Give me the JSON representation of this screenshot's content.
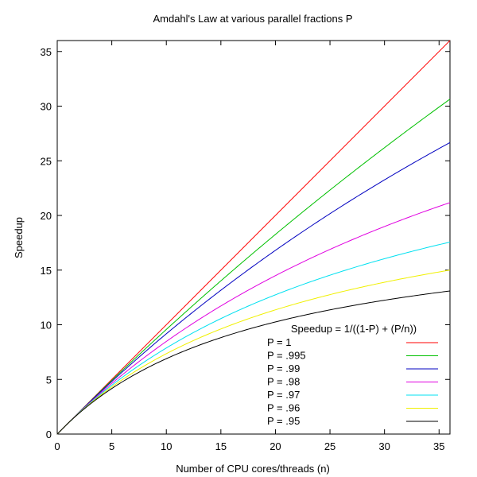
{
  "chart_data": {
    "type": "line",
    "title": "Amdahl's Law at various parallel fractions P",
    "xlabel": "Number of CPU cores/threads (n)",
    "ylabel": "Speedup",
    "xlim": [
      0,
      36
    ],
    "ylim": [
      0,
      36
    ],
    "xticks": [
      0,
      5,
      10,
      15,
      20,
      25,
      30,
      35
    ],
    "yticks": [
      0,
      5,
      10,
      15,
      20,
      25,
      30,
      35
    ],
    "grid": false,
    "legend": {
      "title": "Speedup = 1/((1-P) + (P/n))",
      "placement": "bottom-right"
    },
    "formula": "1/((1-P) + (P/n))",
    "series": [
      {
        "name": "P = 1",
        "P": 1.0,
        "color": "#ff0000",
        "x_range": [
          0,
          36
        ],
        "end_value": 36.0
      },
      {
        "name": "P = .995",
        "P": 0.995,
        "color": "#00c000",
        "x_range": [
          0,
          36
        ],
        "end_value": 30.6
      },
      {
        "name": "P = .99",
        "P": 0.99,
        "color": "#0000c0",
        "x_range": [
          0,
          36
        ],
        "end_value": 26.7
      },
      {
        "name": "P = .98",
        "P": 0.98,
        "color": "#e000e0",
        "x_range": [
          0,
          36
        ],
        "end_value": 21.2
      },
      {
        "name": "P = .97",
        "P": 0.97,
        "color": "#00e0f0",
        "x_range": [
          0,
          36
        ],
        "end_value": 17.6
      },
      {
        "name": "P = .96",
        "P": 0.96,
        "color": "#f0f000",
        "x_range": [
          0,
          36
        ],
        "end_value": 15.0
      },
      {
        "name": "P = .95",
        "P": 0.95,
        "color": "#000000",
        "x_range": [
          0,
          36
        ],
        "end_value": 13.1
      }
    ]
  }
}
